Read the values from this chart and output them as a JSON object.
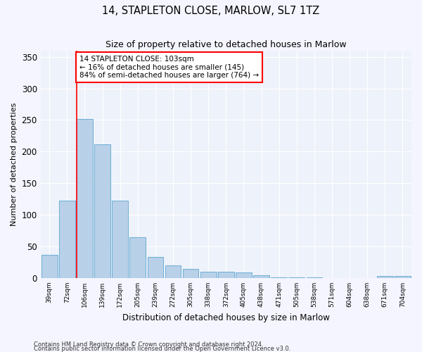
{
  "title": "14, STAPLETON CLOSE, MARLOW, SL7 1TZ",
  "subtitle": "Size of property relative to detached houses in Marlow",
  "xlabel": "Distribution of detached houses by size in Marlow",
  "ylabel": "Number of detached properties",
  "bar_color": "#b8d0e8",
  "bar_edge_color": "#6baed6",
  "background_color": "#eef2fa",
  "grid_color": "#ffffff",
  "figure_color": "#f5f5ff",
  "categories": [
    "39sqm",
    "72sqm",
    "106sqm",
    "139sqm",
    "172sqm",
    "205sqm",
    "239sqm",
    "272sqm",
    "305sqm",
    "338sqm",
    "372sqm",
    "405sqm",
    "438sqm",
    "471sqm",
    "505sqm",
    "538sqm",
    "571sqm",
    "604sqm",
    "638sqm",
    "671sqm",
    "704sqm"
  ],
  "values": [
    37,
    122,
    252,
    211,
    122,
    65,
    33,
    20,
    14,
    10,
    10,
    9,
    4,
    1,
    1,
    1,
    0,
    0,
    0,
    3,
    3
  ],
  "ylim": [
    0,
    360
  ],
  "yticks": [
    0,
    50,
    100,
    150,
    200,
    250,
    300,
    350
  ],
  "annotation_text": "14 STAPLETON CLOSE: 103sqm\n← 16% of detached houses are smaller (145)\n84% of semi-detached houses are larger (764) →",
  "footnote1": "Contains HM Land Registry data © Crown copyright and database right 2024.",
  "footnote2": "Contains public sector information licensed under the Open Government Licence v3.0."
}
